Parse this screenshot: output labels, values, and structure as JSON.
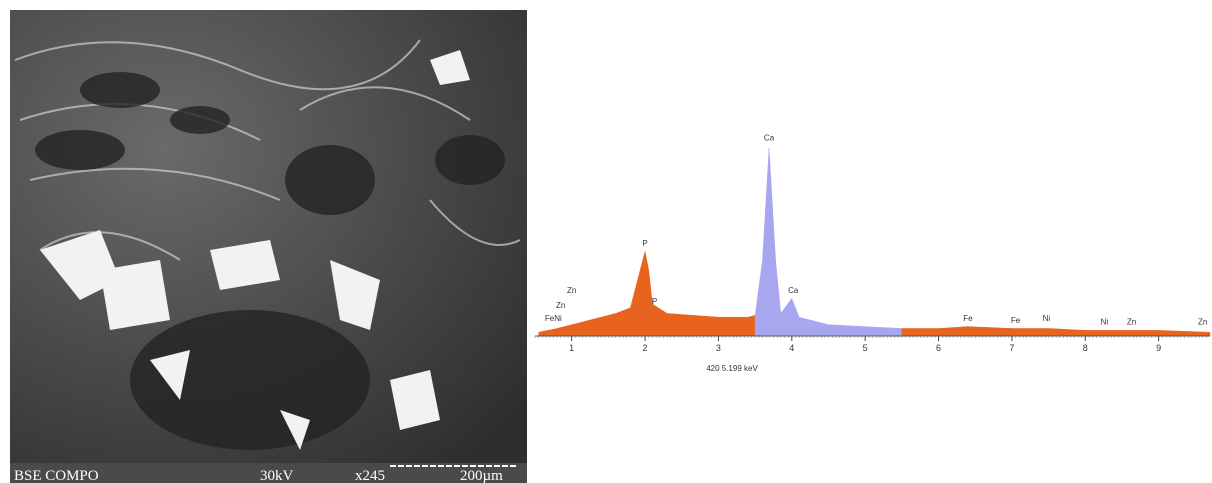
{
  "image_caption": {
    "mode": "BSE COMPO",
    "voltage": "30kV",
    "magnification": "x245",
    "scale": "200µm"
  },
  "chart_data": {
    "type": "area",
    "series": [
      {
        "color": "#e8641e",
        "x": [
          0.55,
          0.8,
          1.0,
          1.3,
          1.6,
          1.8,
          1.9,
          2.0,
          2.05,
          2.1,
          2.3,
          3.0,
          3.4,
          3.5
        ],
        "values": [
          2,
          4,
          6,
          9,
          12,
          15,
          30,
          45,
          35,
          17,
          12,
          10,
          10,
          11
        ]
      },
      {
        "color": "#a9a6f0",
        "x": [
          3.5,
          3.6,
          3.69,
          3.78,
          3.85,
          4.0,
          4.1,
          4.5,
          5.0,
          5.5
        ],
        "values": [
          11,
          40,
          100,
          40,
          12,
          20,
          10,
          6,
          5,
          4
        ]
      },
      {
        "color": "#e8641e",
        "x": [
          5.5,
          6.0,
          6.4,
          7.0,
          7.5,
          8.0,
          8.6,
          9.0,
          9.7
        ],
        "values": [
          4,
          4,
          5,
          4,
          4,
          3,
          3,
          3,
          2
        ]
      }
    ],
    "xlim": [
      0.5,
      9.7
    ],
    "xticks": [
      1,
      2,
      3,
      4,
      5,
      6,
      7,
      8,
      9
    ],
    "ylim": [
      0,
      100
    ],
    "annotations": [
      {
        "text": "Ca",
        "x": 3.69,
        "y": 104
      },
      {
        "text": "Ca",
        "x": 4.02,
        "y": 23
      },
      {
        "text": "P",
        "x": 2.0,
        "y": 48
      },
      {
        "text": "P",
        "x": 2.13,
        "y": 17
      },
      {
        "text": "Zn",
        "x": 1.0,
        "y": 23
      },
      {
        "text": "Zn",
        "x": 0.85,
        "y": 15
      },
      {
        "text": "FeNi",
        "x": 0.75,
        "y": 8
      },
      {
        "text": "Fe",
        "x": 6.4,
        "y": 8
      },
      {
        "text": "Fe",
        "x": 7.05,
        "y": 7
      },
      {
        "text": "Ni",
        "x": 7.47,
        "y": 8
      },
      {
        "text": "Ni",
        "x": 8.26,
        "y": 6
      },
      {
        "text": "Zn",
        "x": 8.63,
        "y": 6
      },
      {
        "text": "Zn",
        "x": 9.6,
        "y": 6
      }
    ],
    "cursor_label": "420  5.199 keV"
  }
}
